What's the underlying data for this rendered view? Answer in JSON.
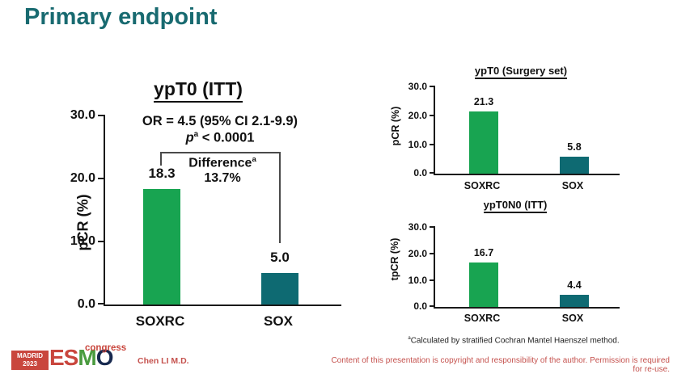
{
  "slide": {
    "title": "Primary endpoint",
    "footnote_sup": "a",
    "footnote": "Calculated by stratified Cochran Mantel Haenszel method.",
    "presenter": "Chen LI M.D.",
    "copyright": "Content of this presentation is copyright and responsibility of the author. Permission is required for re-use.",
    "logo": {
      "city": "MADRID",
      "year": "2023",
      "esmo_es": "ES",
      "esmo_m": "M",
      "esmo_o": "O",
      "congress": "congress"
    }
  },
  "colors": {
    "title_teal": "#186a70",
    "bar_green": "#18a451",
    "bar_teal": "#0e6a72",
    "accent_red": "#c5524e"
  },
  "chart_data": [
    {
      "type": "bar",
      "title": "ypT0 (ITT)",
      "categories": [
        "SOXRC",
        "SOX"
      ],
      "values": [
        18.3,
        5.0
      ],
      "value_labels": [
        "18.3",
        "5.0"
      ],
      "ylabel": "pCR (%)",
      "ylim": [
        0,
        30
      ],
      "yticks": [
        "30.0",
        "20.0",
        "10.0",
        "0.0"
      ],
      "bar_colors": [
        "#18a451",
        "#0e6a72"
      ],
      "grid": false,
      "stats": {
        "or_line": "OR = 4.5 (95% CI 2.1-9.9)",
        "p_var": "p",
        "p_sup": "a",
        "p_rest": " < 0.0001",
        "difference_label": "Difference",
        "difference_sup": "a",
        "difference_value": "13.7%"
      }
    },
    {
      "type": "bar",
      "title": "ypT0 (Surgery set)",
      "categories": [
        "SOXRC",
        "SOX"
      ],
      "values": [
        21.3,
        5.8
      ],
      "value_labels": [
        "21.3",
        "5.8"
      ],
      "ylabel": "pCR (%)",
      "ylim": [
        0,
        30
      ],
      "yticks": [
        "30.0",
        "20.0",
        "10.0",
        "0.0"
      ],
      "bar_colors": [
        "#18a451",
        "#0e6a72"
      ],
      "grid": false
    },
    {
      "type": "bar",
      "title": "ypT0N0 (ITT)",
      "categories": [
        "SOXRC",
        "SOX"
      ],
      "values": [
        16.7,
        4.4
      ],
      "value_labels": [
        "16.7",
        "4.4"
      ],
      "ylabel": "tpCR (%)",
      "ylim": [
        0,
        30
      ],
      "yticks": [
        "30.0",
        "20.0",
        "10.0",
        "0.0"
      ],
      "bar_colors": [
        "#18a451",
        "#0e6a72"
      ],
      "grid": false
    }
  ]
}
